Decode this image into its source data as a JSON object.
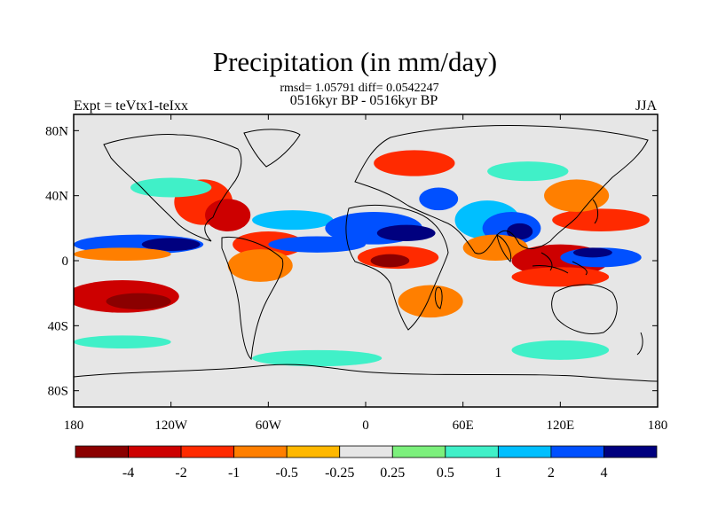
{
  "title": "Precipitation (in mm/day)",
  "stats_line": "rmsd= 1.05791 diff= 0.0542247",
  "period_line": "0516kyr BP - 0516kyr BP",
  "left_string": "Expt = teVtx1-teIxx",
  "right_string": "JJA",
  "lat_labels": [
    "80N",
    "40N",
    "0",
    "40S",
    "80S"
  ],
  "lat_values": [
    80,
    40,
    0,
    -40,
    -80
  ],
  "lon_labels": [
    "180",
    "120W",
    "60W",
    "0",
    "60E",
    "120E",
    "180"
  ],
  "lon_values": [
    -180,
    -120,
    -60,
    0,
    60,
    120,
    180
  ],
  "colorbar": {
    "labels": [
      "-4",
      "-2",
      "-1",
      "-0.5",
      "-0.25",
      "0.25",
      "0.5",
      "1",
      "2",
      "4"
    ],
    "colors": [
      "#8b0000",
      "#cd0000",
      "#ff2a00",
      "#ff7f00",
      "#ffb800",
      "#e6e6e6",
      "#7cf07c",
      "#40f0c8",
      "#00bfff",
      "#0050ff",
      "#00007f"
    ]
  },
  "colors": {
    "ocean_bg": "#e6e6e6",
    "coast": "#000000"
  },
  "anomaly_fields": [
    {
      "lon": -150,
      "lat": -22,
      "rx": 35,
      "ry": 10,
      "cls": 1
    },
    {
      "lon": -140,
      "lat": -25,
      "rx": 20,
      "ry": 5,
      "cls": 0
    },
    {
      "lon": -140,
      "lat": 10,
      "rx": 40,
      "ry": 6,
      "cls": 9
    },
    {
      "lon": -120,
      "lat": 10,
      "rx": 18,
      "ry": 4,
      "cls": 10
    },
    {
      "lon": -150,
      "lat": 4,
      "rx": 30,
      "ry": 4,
      "cls": 3
    },
    {
      "lon": -100,
      "lat": 36,
      "rx": 18,
      "ry": 14,
      "cls": 2
    },
    {
      "lon": -85,
      "lat": 28,
      "rx": 14,
      "ry": 10,
      "cls": 1
    },
    {
      "lon": -60,
      "lat": 10,
      "rx": 22,
      "ry": 8,
      "cls": 2
    },
    {
      "lon": -65,
      "lat": -3,
      "rx": 20,
      "ry": 10,
      "cls": 3
    },
    {
      "lon": -45,
      "lat": 25,
      "rx": 25,
      "ry": 6,
      "cls": 8
    },
    {
      "lon": -30,
      "lat": 10,
      "rx": 30,
      "ry": 5,
      "cls": 9
    },
    {
      "lon": 5,
      "lat": 20,
      "rx": 30,
      "ry": 10,
      "cls": 9
    },
    {
      "lon": 25,
      "lat": 17,
      "rx": 18,
      "ry": 5,
      "cls": 10
    },
    {
      "lon": 20,
      "lat": 2,
      "rx": 25,
      "ry": 7,
      "cls": 2
    },
    {
      "lon": 15,
      "lat": 0,
      "rx": 12,
      "ry": 4,
      "cls": 0
    },
    {
      "lon": 40,
      "lat": -25,
      "rx": 20,
      "ry": 10,
      "cls": 3
    },
    {
      "lon": 30,
      "lat": 60,
      "rx": 25,
      "ry": 8,
      "cls": 2
    },
    {
      "lon": 45,
      "lat": 38,
      "rx": 12,
      "ry": 7,
      "cls": 9
    },
    {
      "lon": 75,
      "lat": 25,
      "rx": 20,
      "ry": 12,
      "cls": 8
    },
    {
      "lon": 90,
      "lat": 20,
      "rx": 18,
      "ry": 10,
      "cls": 9
    },
    {
      "lon": 95,
      "lat": 18,
      "rx": 8,
      "ry": 5,
      "cls": 10
    },
    {
      "lon": 80,
      "lat": 8,
      "rx": 20,
      "ry": 8,
      "cls": 3
    },
    {
      "lon": 120,
      "lat": 0,
      "rx": 30,
      "ry": 10,
      "cls": 1
    },
    {
      "lon": 145,
      "lat": 2,
      "rx": 25,
      "ry": 6,
      "cls": 9
    },
    {
      "lon": 140,
      "lat": 5,
      "rx": 12,
      "ry": 3,
      "cls": 10
    },
    {
      "lon": 145,
      "lat": 25,
      "rx": 30,
      "ry": 7,
      "cls": 2
    },
    {
      "lon": 130,
      "lat": 40,
      "rx": 20,
      "ry": 10,
      "cls": 3
    },
    {
      "lon": 120,
      "lat": -10,
      "rx": 30,
      "ry": 6,
      "cls": 2
    },
    {
      "lon": -150,
      "lat": -50,
      "rx": 30,
      "ry": 4,
      "cls": 7
    },
    {
      "lon": -30,
      "lat": -60,
      "rx": 40,
      "ry": 5,
      "cls": 7
    },
    {
      "lon": 120,
      "lat": -55,
      "rx": 30,
      "ry": 6,
      "cls": 7
    },
    {
      "lon": -120,
      "lat": 45,
      "rx": 25,
      "ry": 6,
      "cls": 7
    },
    {
      "lon": 100,
      "lat": 55,
      "rx": 25,
      "ry": 6,
      "cls": 7
    }
  ]
}
